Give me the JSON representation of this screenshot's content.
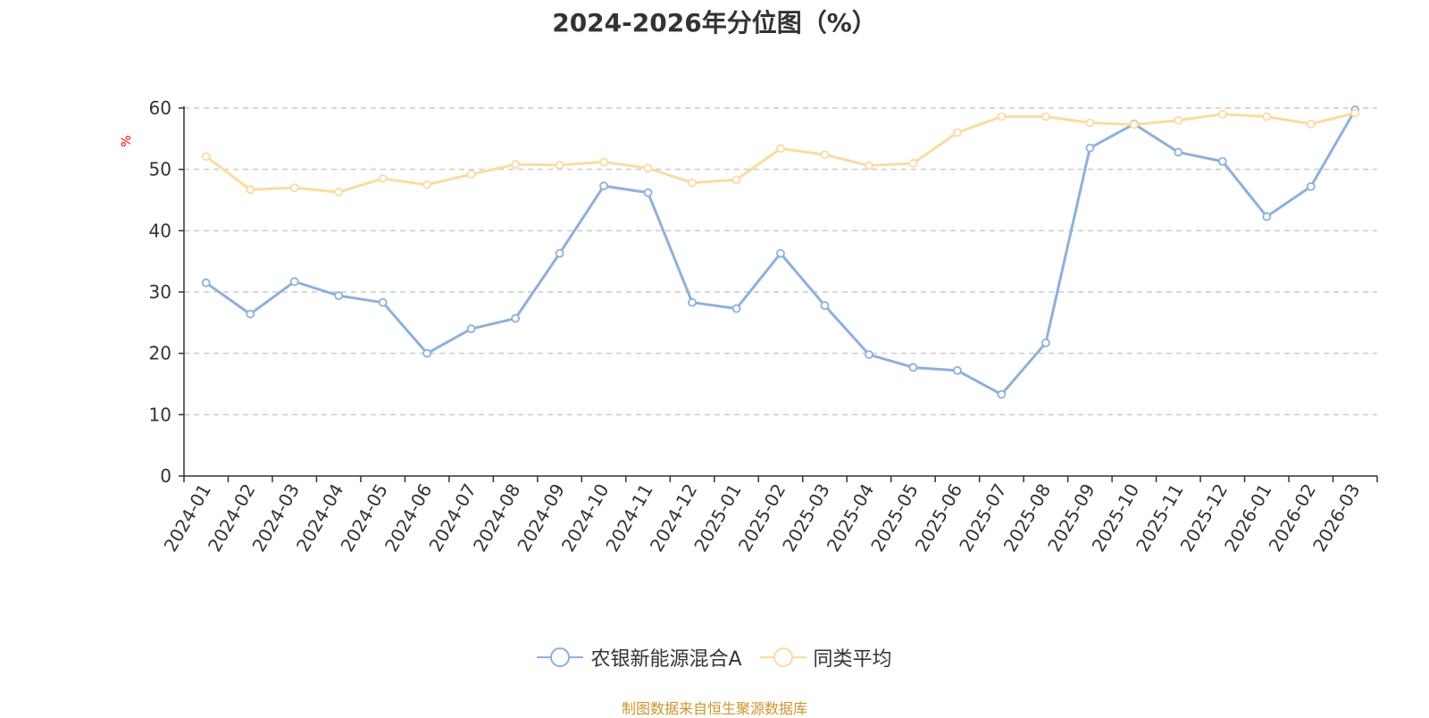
{
  "chart_data": {
    "type": "line",
    "title": "2024-2026年分位图（%）",
    "ylabel": "%",
    "xlabel": "",
    "ylim": [
      0,
      60
    ],
    "yticks": [
      0,
      10,
      20,
      30,
      40,
      50,
      60
    ],
    "grid": true,
    "legend_position": "bottom",
    "categories": [
      "2024-01",
      "2024-02",
      "2024-03",
      "2024-04",
      "2024-05",
      "2024-06",
      "2024-07",
      "2024-08",
      "2024-09",
      "2024-10",
      "2024-11",
      "2024-12",
      "2025-01",
      "2025-02",
      "2025-03",
      "2025-04",
      "2025-05",
      "2025-06",
      "2025-07",
      "2025-08",
      "2025-09",
      "2025-10",
      "2025-11",
      "2025-12",
      "2026-01",
      "2026-02",
      "2026-03"
    ],
    "series": [
      {
        "name": "农银新能源混合A",
        "color": "#8eb0dc",
        "values": [
          31.5,
          26.4,
          31.7,
          29.4,
          28.3,
          20.0,
          24.0,
          25.7,
          36.3,
          47.3,
          46.2,
          28.3,
          27.3,
          36.3,
          27.8,
          19.8,
          17.7,
          17.2,
          13.3,
          21.7,
          53.5,
          57.4,
          52.8,
          51.3,
          42.3,
          47.2,
          59.7
        ]
      },
      {
        "name": "同类平均",
        "color": "#fcdba0",
        "values": [
          52.1,
          46.7,
          47.0,
          46.3,
          48.5,
          47.5,
          49.2,
          50.8,
          50.7,
          51.2,
          50.2,
          47.8,
          48.3,
          53.4,
          52.4,
          50.6,
          51.0,
          56.0,
          58.6,
          58.6,
          57.6,
          57.3,
          58.0,
          59.0,
          58.6,
          57.4,
          59.2
        ]
      }
    ]
  },
  "footer": {
    "source": "制图数据来自恒生聚源数据库"
  }
}
